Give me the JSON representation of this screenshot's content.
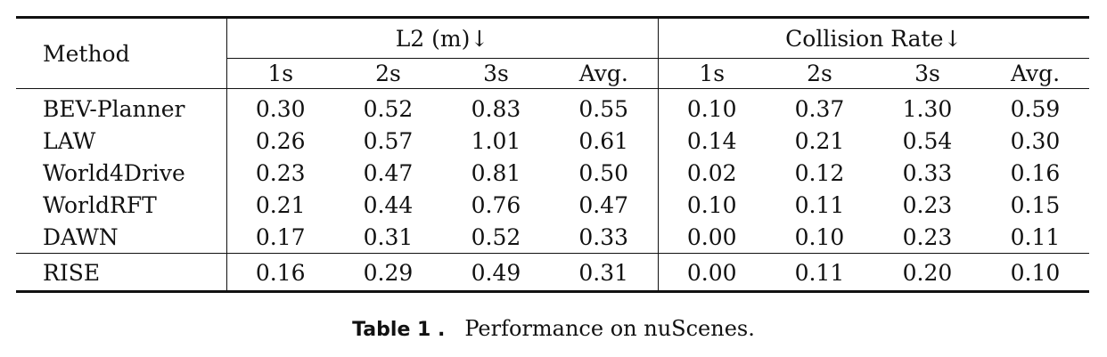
{
  "table": {
    "method_header": "Method",
    "group_l2": "L2 (m)↓",
    "group_collision": "Collision Rate↓",
    "sub_headers": [
      "1s",
      "2s",
      "3s",
      "Avg.",
      "1s",
      "2s",
      "3s",
      "Avg."
    ],
    "rows": [
      {
        "method": "BEV-Planner",
        "values": [
          "0.30",
          "0.52",
          "0.83",
          "0.55",
          "0.10",
          "0.37",
          "1.30",
          "0.59"
        ]
      },
      {
        "method": "LAW",
        "values": [
          "0.26",
          "0.57",
          "1.01",
          "0.61",
          "0.14",
          "0.21",
          "0.54",
          "0.30"
        ]
      },
      {
        "method": "World4Drive",
        "values": [
          "0.23",
          "0.47",
          "0.81",
          "0.50",
          "0.02",
          "0.12",
          "0.33",
          "0.16"
        ]
      },
      {
        "method": "WorldRFT",
        "values": [
          "0.21",
          "0.44",
          "0.76",
          "0.47",
          "0.10",
          "0.11",
          "0.23",
          "0.15"
        ]
      },
      {
        "method": "DAWN",
        "values": [
          "0.17",
          "0.31",
          "0.52",
          "0.33",
          "0.00",
          "0.10",
          "0.23",
          "0.11"
        ]
      },
      {
        "method": "RISE",
        "values": [
          "0.16",
          "0.29",
          "0.49",
          "0.31",
          "0.00",
          "0.11",
          "0.20",
          "0.10"
        ]
      }
    ]
  },
  "caption": {
    "label": "Table 1 .",
    "text": "Performance on nuScenes."
  }
}
